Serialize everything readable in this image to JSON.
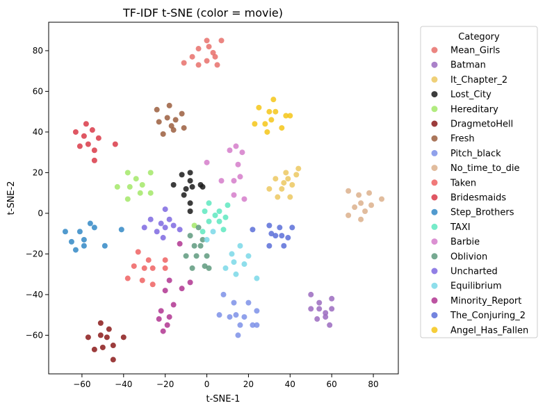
{
  "chart_data": {
    "type": "scatter",
    "title": "TF-IDF t-SNE (color = movie)",
    "xlabel": "t-SNE-1",
    "ylabel": "t-SNE-2",
    "xlim": [
      -76,
      92
    ],
    "ylim": [
      -79,
      94
    ],
    "xticks": [
      -60,
      -40,
      -20,
      0,
      20,
      40,
      60,
      80
    ],
    "yticks": [
      -60,
      -40,
      -20,
      0,
      20,
      40,
      60,
      80
    ],
    "grid": false,
    "legend": {
      "title": "Category",
      "placement": "outside-right"
    },
    "series": [
      {
        "name": "Mean_Girls",
        "color": "#e8706b",
        "points": [
          [
            -11,
            74
          ],
          [
            -7,
            77
          ],
          [
            -4,
            81
          ],
          [
            -4,
            73
          ],
          [
            0,
            75
          ],
          [
            0,
            85
          ],
          [
            1,
            82
          ],
          [
            3,
            79
          ],
          [
            4,
            77
          ],
          [
            5,
            73
          ],
          [
            7,
            85
          ]
        ]
      },
      {
        "name": "Batman",
        "color": "#9b6bbf",
        "points": [
          [
            50,
            -40
          ],
          [
            50,
            -47
          ],
          [
            53,
            -52
          ],
          [
            54,
            -47
          ],
          [
            54,
            -44
          ],
          [
            57,
            -49
          ],
          [
            57,
            -51
          ],
          [
            59,
            -55
          ],
          [
            60,
            -47
          ],
          [
            60,
            -42
          ]
        ]
      },
      {
        "name": "It_Chapter_2",
        "color": "#ecc860",
        "points": [
          []
        ]
      },
      {
        "name": "Lost_City",
        "color": "#1a1a1a",
        "points": [
          [
            -16,
            14
          ],
          [
            -12,
            19
          ],
          [
            -11,
            9
          ],
          [
            -10,
            12
          ],
          [
            -8,
            20
          ],
          [
            -8,
            16
          ],
          [
            -8,
            5
          ],
          [
            -8,
            1
          ],
          [
            -7,
            13
          ],
          [
            -3,
            14
          ],
          [
            -2,
            13
          ]
        ]
      },
      {
        "name": "Hereditary",
        "color": "#a3e868",
        "points": [
          [
            -43,
            13
          ],
          [
            -38,
            20
          ],
          [
            -38,
            7
          ],
          [
            -37,
            13
          ],
          [
            -34,
            17
          ],
          [
            -32,
            10
          ],
          [
            -31,
            14
          ],
          [
            -27,
            20
          ],
          [
            -27,
            10
          ],
          [
            -6,
            -6
          ]
        ]
      },
      {
        "name": "DragmetoHell",
        "color": "#8b1a1a",
        "points": [
          [
            -57,
            -61
          ],
          [
            -54,
            -67
          ],
          [
            -51,
            -54
          ],
          [
            -51,
            -60
          ],
          [
            -50,
            -66
          ],
          [
            -48,
            -61
          ],
          [
            -47,
            -57
          ],
          [
            -45,
            -65
          ],
          [
            -45,
            -72
          ],
          [
            -40,
            -61
          ]
        ]
      },
      {
        "name": "Fresh",
        "color": "#9b5e3e",
        "points": [
          [
            -24,
            51
          ],
          [
            -23,
            45
          ],
          [
            -21,
            39
          ],
          [
            -19,
            47
          ],
          [
            -18,
            53
          ],
          [
            -17,
            43
          ],
          [
            -16,
            41
          ],
          [
            -15,
            46
          ],
          [
            -12,
            49
          ],
          [
            -11,
            42
          ]
        ]
      },
      {
        "name": "Pitch_black",
        "color": "#7d90e8",
        "points": [
          [
            6,
            -50
          ],
          [
            8,
            -40
          ],
          [
            11,
            -51
          ],
          [
            13,
            -44
          ],
          [
            14,
            -50
          ],
          [
            15,
            -60
          ],
          [
            16,
            -55
          ],
          [
            18,
            -51
          ],
          [
            20,
            -44
          ],
          [
            22,
            -55
          ],
          [
            24,
            -48
          ],
          [
            24,
            -55
          ]
        ]
      },
      {
        "name": "No_time_to_die",
        "color": "#dcb08c",
        "points": [
          [
            68,
            11
          ],
          [
            68,
            -1
          ],
          [
            71,
            3
          ],
          [
            73,
            9
          ],
          [
            74,
            -3
          ],
          [
            74,
            5
          ],
          [
            76,
            1
          ],
          [
            78,
            10
          ],
          [
            79,
            4
          ],
          [
            84,
            7
          ]
        ]
      },
      {
        "name": "Taken",
        "color": "#ee6262",
        "points": [
          [
            -38,
            -32
          ],
          [
            -35,
            -26
          ],
          [
            -33,
            -19
          ],
          [
            -31,
            -33
          ],
          [
            -30,
            -27
          ],
          [
            -28,
            -23
          ],
          [
            -26,
            -35
          ],
          [
            -26,
            -27
          ],
          [
            -20,
            -23
          ],
          [
            -20,
            -27
          ]
        ]
      },
      {
        "name": "Bridesmaids",
        "color": "#d93a48",
        "points": [
          [
            -63,
            40
          ],
          [
            -61,
            33
          ],
          [
            -59,
            38
          ],
          [
            -58,
            44
          ],
          [
            -57,
            34
          ],
          [
            -55,
            41
          ],
          [
            -54,
            31
          ],
          [
            -54,
            26
          ],
          [
            -52,
            37
          ],
          [
            -44,
            34
          ]
        ]
      },
      {
        "name": "Step_Brothers",
        "color": "#3288c6",
        "points": [
          [
            -68,
            -9
          ],
          [
            -65,
            -14
          ],
          [
            -63,
            -18
          ],
          [
            -61,
            -9
          ],
          [
            -59,
            -13
          ],
          [
            -59,
            -16
          ],
          [
            -56,
            -5
          ],
          [
            -54,
            -7
          ],
          [
            -49,
            -16
          ],
          [
            -41,
            -8
          ]
        ]
      },
      {
        "name": "TAXI",
        "color": "#5ee8c0",
        "points": [
          [
            -1,
            1
          ],
          [
            1,
            -4
          ],
          [
            1,
            5
          ],
          [
            4,
            -1
          ],
          [
            6,
            1
          ],
          [
            6,
            -4
          ],
          [
            9,
            -2
          ],
          [
            10,
            4
          ],
          [
            8,
            -8
          ],
          [
            -2,
            -9
          ]
        ]
      },
      {
        "name": "Barbie",
        "color": "#d57dca",
        "points": [
          [
            0,
            25
          ],
          [
            7,
            16
          ],
          [
            11,
            31
          ],
          [
            13,
            16
          ],
          [
            13,
            9
          ],
          [
            14,
            33
          ],
          [
            15,
            24
          ],
          [
            16,
            18
          ],
          [
            17,
            30
          ],
          [
            18,
            7
          ]
        ]
      },
      {
        "name": "Oblivion",
        "color": "#5e9a7e",
        "points": [
          [
            -8,
            -11
          ],
          [
            -7,
            -27
          ],
          [
            -6,
            -16
          ],
          [
            -5,
            -21
          ],
          [
            -4,
            -7
          ],
          [
            -2,
            -13
          ],
          [
            -3,
            -16
          ],
          [
            -1,
            -26
          ],
          [
            0,
            -21
          ],
          [
            1,
            -27
          ],
          [
            -10,
            -21
          ]
        ]
      },
      {
        "name": "Uncharted",
        "color": "#7e68e0",
        "points": [
          [
            -30,
            -7
          ],
          [
            -27,
            -3
          ],
          [
            -24,
            -9
          ],
          [
            -22,
            -5
          ],
          [
            -21,
            -12
          ],
          [
            -20,
            -7
          ],
          [
            -18,
            -3
          ],
          [
            -16,
            -6
          ],
          [
            -13,
            -8
          ],
          [
            -20,
            2
          ]
        ]
      },
      {
        "name": "Equilibrium",
        "color": "#7ad8e8",
        "points": [
          [
            0,
            -13
          ],
          [
            3,
            -9
          ],
          [
            9,
            -27
          ],
          [
            12,
            -20
          ],
          [
            13,
            -24
          ],
          [
            14,
            -30
          ],
          [
            16,
            -16
          ],
          [
            18,
            -25
          ],
          [
            20,
            -21
          ],
          [
            24,
            -32
          ]
        ]
      },
      {
        "name": "Minority_Report",
        "color": "#b03590",
        "points": [
          [
            -23,
            -52
          ],
          [
            -22,
            -48
          ],
          [
            -21,
            -58
          ],
          [
            -20,
            -38
          ],
          [
            -19,
            -55
          ],
          [
            -18,
            -51
          ],
          [
            -18,
            -33
          ],
          [
            -16,
            -45
          ],
          [
            -13,
            -15
          ],
          [
            -12,
            -37
          ],
          [
            -8,
            -34
          ]
        ]
      },
      {
        "name": "The_Conjuring_2",
        "color": "#5a6ed8",
        "points": [
          [
            22,
            -8
          ],
          [
            30,
            -6
          ],
          [
            30,
            -16
          ],
          [
            31,
            -10
          ],
          [
            33,
            -11
          ],
          [
            35,
            -7
          ],
          [
            36,
            -11
          ],
          [
            37,
            -16
          ],
          [
            39,
            -12
          ],
          [
            41,
            -7
          ]
        ]
      },
      {
        "name": "Angel_Has_Fallen",
        "color": "#f5c518",
        "points": [
          [
            23,
            44
          ],
          [
            25,
            52
          ],
          [
            28,
            44
          ],
          [
            29,
            40
          ],
          [
            30,
            50
          ],
          [
            31,
            46
          ],
          [
            32,
            56
          ],
          [
            33,
            50
          ],
          [
            36,
            42
          ],
          [
            38,
            48
          ],
          [
            40,
            48
          ]
        ]
      }
    ]
  }
}
